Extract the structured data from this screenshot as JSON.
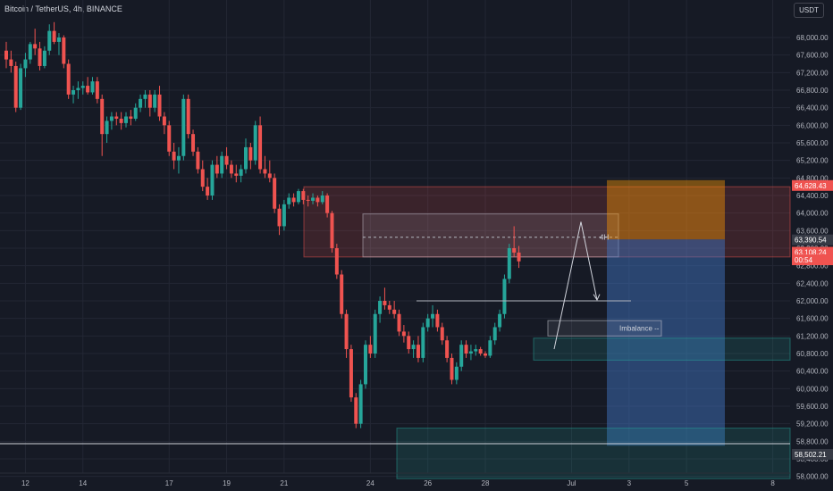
{
  "header": {
    "symbol": "Bitcoin / TetherUS, 4h, BINANCE",
    "currency": "USDT"
  },
  "colors": {
    "up": "#26a69a",
    "down": "#ef5350",
    "bg": "#161a25",
    "grid": "#232734"
  },
  "chart_data": {
    "type": "candlestick",
    "ylim": [
      57600,
      68600
    ],
    "y_ticks": [
      "68,000.00",
      "67,600.00",
      "67,200.00",
      "66,800.00",
      "66,400.00",
      "66,000.00",
      "65,600.00",
      "65,200.00",
      "64,800.00",
      "64,400.00",
      "64,000.00",
      "63,600.00",
      "63,200.00",
      "62,800.00",
      "62,400.00",
      "62,000.00",
      "61,600.00",
      "61,200.00",
      "60,800.00",
      "60,400.00",
      "60,000.00",
      "59,600.00",
      "59,200.00",
      "58,800.00",
      "58,400.00",
      "58,000.00"
    ],
    "x_ticks": [
      {
        "label": "12",
        "i": 4
      },
      {
        "label": "14",
        "i": 16
      },
      {
        "label": "17",
        "i": 34
      },
      {
        "label": "19",
        "i": 46
      },
      {
        "label": "21",
        "i": 58
      },
      {
        "label": "24",
        "i": 76
      },
      {
        "label": "26",
        "i": 88
      },
      {
        "label": "28",
        "i": 100
      },
      {
        "label": "Jul",
        "i": 118
      },
      {
        "label": "3",
        "i": 130
      },
      {
        "label": "5",
        "i": 142
      },
      {
        "label": "8",
        "i": 160
      }
    ],
    "price_labels": [
      {
        "text": "64,628.43",
        "price": 64628,
        "color": "#ef5350"
      },
      {
        "text": "63,390.54",
        "price": 63390,
        "color": "#363a45"
      },
      {
        "text": "63,108.24",
        "price": 63108,
        "color": "#ef5350"
      },
      {
        "text": "00:54",
        "price": 62935,
        "color": "#ef5350"
      },
      {
        "text": "58,502.21",
        "price": 58502,
        "color": "#363a45"
      }
    ],
    "annotations": [
      "4H",
      "Imbalance --"
    ],
    "candles": [
      [
        67700,
        67900,
        67300,
        67500
      ],
      [
        67500,
        67700,
        67200,
        67350
      ],
      [
        67350,
        67450,
        66300,
        66400
      ],
      [
        66400,
        67400,
        66350,
        67300
      ],
      [
        67300,
        67650,
        67100,
        67500
      ],
      [
        67500,
        67900,
        67400,
        67850
      ],
      [
        67850,
        68200,
        67600,
        67750
      ],
      [
        67750,
        67900,
        67250,
        67350
      ],
      [
        67350,
        67800,
        67300,
        67700
      ],
      [
        67700,
        68300,
        67600,
        68150
      ],
      [
        68150,
        68350,
        67850,
        67900
      ],
      [
        67900,
        68100,
        67600,
        68000
      ],
      [
        68000,
        68050,
        67300,
        67400
      ],
      [
        67400,
        67500,
        66600,
        66700
      ],
      [
        66700,
        66900,
        66500,
        66800
      ],
      [
        66800,
        67000,
        66600,
        66850
      ],
      [
        66850,
        67000,
        66700,
        66900
      ],
      [
        66900,
        67100,
        66700,
        66750
      ],
      [
        66750,
        67100,
        66700,
        67000
      ],
      [
        67000,
        67100,
        66500,
        66600
      ],
      [
        66600,
        66700,
        65300,
        65800
      ],
      [
        65800,
        66200,
        65600,
        66100
      ],
      [
        66100,
        66300,
        65900,
        66200
      ],
      [
        66200,
        66300,
        66000,
        66150
      ],
      [
        66150,
        66300,
        65900,
        66050
      ],
      [
        66050,
        66300,
        65950,
        66200
      ],
      [
        66200,
        66350,
        66000,
        66150
      ],
      [
        66150,
        66500,
        66100,
        66400
      ],
      [
        66400,
        66700,
        66300,
        66600
      ],
      [
        66600,
        66800,
        66400,
        66700
      ],
      [
        66700,
        66800,
        66200,
        66400
      ],
      [
        66400,
        66800,
        66300,
        66700
      ],
      [
        66700,
        66900,
        66100,
        66200
      ],
      [
        66200,
        66300,
        65800,
        66000
      ],
      [
        66000,
        66100,
        65300,
        65400
      ],
      [
        65400,
        65600,
        65000,
        65200
      ],
      [
        65200,
        65500,
        64900,
        65300
      ],
      [
        65300,
        66700,
        65200,
        66600
      ],
      [
        66600,
        66700,
        65700,
        65800
      ],
      [
        65800,
        65900,
        65300,
        65400
      ],
      [
        65400,
        65500,
        64900,
        65000
      ],
      [
        65000,
        65200,
        64500,
        64600
      ],
      [
        64600,
        64800,
        64300,
        64400
      ],
      [
        64400,
        65200,
        64300,
        65100
      ],
      [
        65100,
        65300,
        64800,
        64900
      ],
      [
        64900,
        65400,
        64800,
        65300
      ],
      [
        65300,
        65500,
        65000,
        65100
      ],
      [
        65100,
        65200,
        64800,
        64900
      ],
      [
        64900,
        65100,
        64700,
        64850
      ],
      [
        64850,
        65100,
        64700,
        65000
      ],
      [
        65000,
        65700,
        64900,
        65500
      ],
      [
        65500,
        65600,
        65000,
        65200
      ],
      [
        65200,
        66100,
        65100,
        66000
      ],
      [
        66000,
        66200,
        64900,
        65000
      ],
      [
        65000,
        65300,
        64800,
        64900
      ],
      [
        64900,
        65200,
        64700,
        64800
      ],
      [
        64800,
        64900,
        64000,
        64100
      ],
      [
        64100,
        64200,
        63500,
        63700
      ],
      [
        63700,
        64300,
        63600,
        64200
      ],
      [
        64200,
        64450,
        64100,
        64350
      ],
      [
        64350,
        64450,
        64150,
        64250
      ],
      [
        64250,
        64550,
        64200,
        64500
      ],
      [
        64500,
        64550,
        64200,
        64300
      ],
      [
        64300,
        64400,
        64150,
        64280
      ],
      [
        64280,
        64450,
        64200,
        64350
      ],
      [
        64350,
        64400,
        64150,
        64250
      ],
      [
        64250,
        64500,
        64200,
        64400
      ],
      [
        64400,
        64450,
        63900,
        64000
      ],
      [
        64000,
        64050,
        63100,
        63200
      ],
      [
        63200,
        63300,
        62500,
        62600
      ],
      [
        62600,
        62700,
        61600,
        61700
      ],
      [
        61700,
        61800,
        60700,
        60900
      ],
      [
        60900,
        61000,
        59700,
        59800
      ],
      [
        59800,
        59900,
        59100,
        59200
      ],
      [
        59200,
        60200,
        59100,
        60100
      ],
      [
        60100,
        61100,
        60000,
        61000
      ],
      [
        61000,
        61200,
        60700,
        60800
      ],
      [
        60800,
        61800,
        60700,
        61700
      ],
      [
        61700,
        62100,
        61500,
        62000
      ],
      [
        62000,
        62300,
        61800,
        61900
      ],
      [
        61900,
        62000,
        61700,
        61800
      ],
      [
        61800,
        62000,
        61600,
        61700
      ],
      [
        61700,
        61800,
        61200,
        61300
      ],
      [
        61300,
        61450,
        61050,
        61200
      ],
      [
        61200,
        61300,
        60800,
        60900
      ],
      [
        60900,
        61100,
        60700,
        61000
      ],
      [
        61000,
        61200,
        60600,
        60700
      ],
      [
        60700,
        61500,
        60600,
        61400
      ],
      [
        61400,
        61700,
        61300,
        61600
      ],
      [
        61600,
        61900,
        61400,
        61700
      ],
      [
        61700,
        61800,
        61300,
        61400
      ],
      [
        61400,
        61500,
        61000,
        61100
      ],
      [
        61100,
        61200,
        60600,
        60700
      ],
      [
        60700,
        60800,
        60100,
        60200
      ],
      [
        60200,
        60600,
        60100,
        60500
      ],
      [
        60500,
        61100,
        60400,
        61000
      ],
      [
        61000,
        61100,
        60700,
        60800
      ],
      [
        60800,
        61000,
        60650,
        60850
      ],
      [
        60850,
        61000,
        60750,
        60900
      ],
      [
        60900,
        60950,
        60750,
        60800
      ],
      [
        60800,
        60850,
        60700,
        60750
      ],
      [
        60750,
        61200,
        60700,
        61100
      ],
      [
        61100,
        61500,
        61000,
        61400
      ],
      [
        61400,
        61800,
        61300,
        61700
      ],
      [
        61700,
        62600,
        61600,
        62500
      ],
      [
        62500,
        63300,
        62400,
        63200
      ],
      [
        63200,
        63700,
        63000,
        63100
      ],
      [
        63100,
        63250,
        62750,
        62900
      ]
    ]
  }
}
